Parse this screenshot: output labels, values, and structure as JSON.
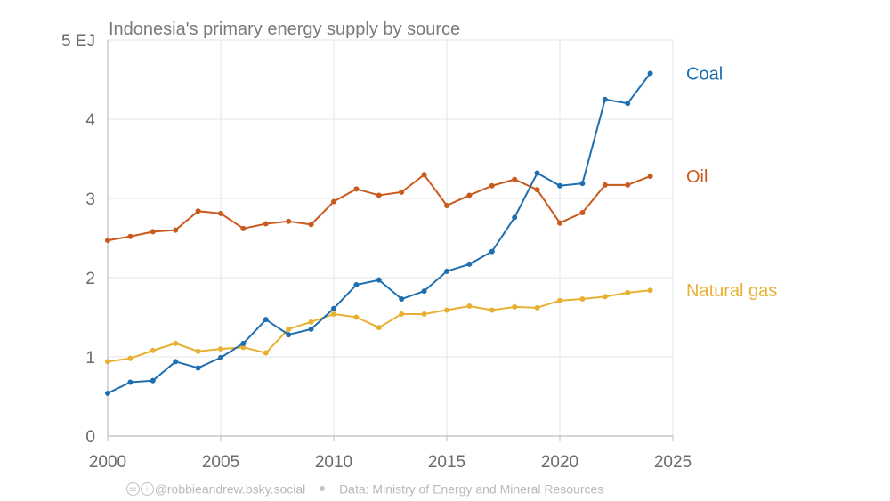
{
  "chart_data": {
    "type": "line",
    "title": "Indonesia's primary energy supply by source",
    "xlabel": "",
    "ylabel": "",
    "xlim": [
      2000,
      2025
    ],
    "ylim": [
      0,
      5
    ],
    "x_ticks": [
      2000,
      2005,
      2010,
      2015,
      2020,
      2025
    ],
    "x_tick_labels": [
      "2000",
      "2005",
      "2010",
      "2015",
      "2020",
      "2025"
    ],
    "y_ticks": [
      0,
      1,
      2,
      3,
      4,
      5
    ],
    "y_tick_labels": [
      "0",
      "1",
      "2",
      "3",
      "4",
      "5 EJ"
    ],
    "grid": true,
    "x": [
      2000,
      2001,
      2002,
      2003,
      2004,
      2005,
      2006,
      2007,
      2008,
      2009,
      2010,
      2011,
      2012,
      2013,
      2014,
      2015,
      2016,
      2017,
      2018,
      2019,
      2020,
      2021,
      2022,
      2023,
      2024
    ],
    "series": [
      {
        "name": "Coal",
        "color": "#1f6fb0",
        "values": [
          0.54,
          0.68,
          0.7,
          0.94,
          0.86,
          0.99,
          1.17,
          1.47,
          1.28,
          1.35,
          1.61,
          1.91,
          1.97,
          1.73,
          1.83,
          2.08,
          2.17,
          2.33,
          2.76,
          3.32,
          3.16,
          3.19,
          4.25,
          4.2,
          4.58
        ]
      },
      {
        "name": "Oil",
        "color": "#c85a1e",
        "values": [
          2.47,
          2.52,
          2.58,
          2.6,
          2.84,
          2.81,
          2.62,
          2.68,
          2.71,
          2.67,
          2.96,
          3.12,
          3.04,
          3.08,
          3.3,
          2.91,
          3.04,
          3.16,
          3.24,
          3.11,
          2.69,
          2.82,
          3.17,
          3.17,
          3.28
        ]
      },
      {
        "name": "Natural gas",
        "color": "#e8b030",
        "values": [
          0.94,
          0.98,
          1.08,
          1.17,
          1.07,
          1.1,
          1.12,
          1.05,
          1.35,
          1.44,
          1.54,
          1.5,
          1.37,
          1.54,
          1.54,
          1.59,
          1.64,
          1.59,
          1.63,
          1.62,
          1.71,
          1.73,
          1.76,
          1.81,
          1.84
        ]
      }
    ]
  },
  "footer": {
    "cc_glyph": "cc",
    "by_glyph": "i",
    "handle": "@robbieandrew.bsky.social",
    "source": "Data: Ministry of Energy and Mineral Resources"
  },
  "colors": {
    "grid": "#e6e6e6",
    "axis": "#bdbdbd",
    "text": "#6b6b6b"
  }
}
